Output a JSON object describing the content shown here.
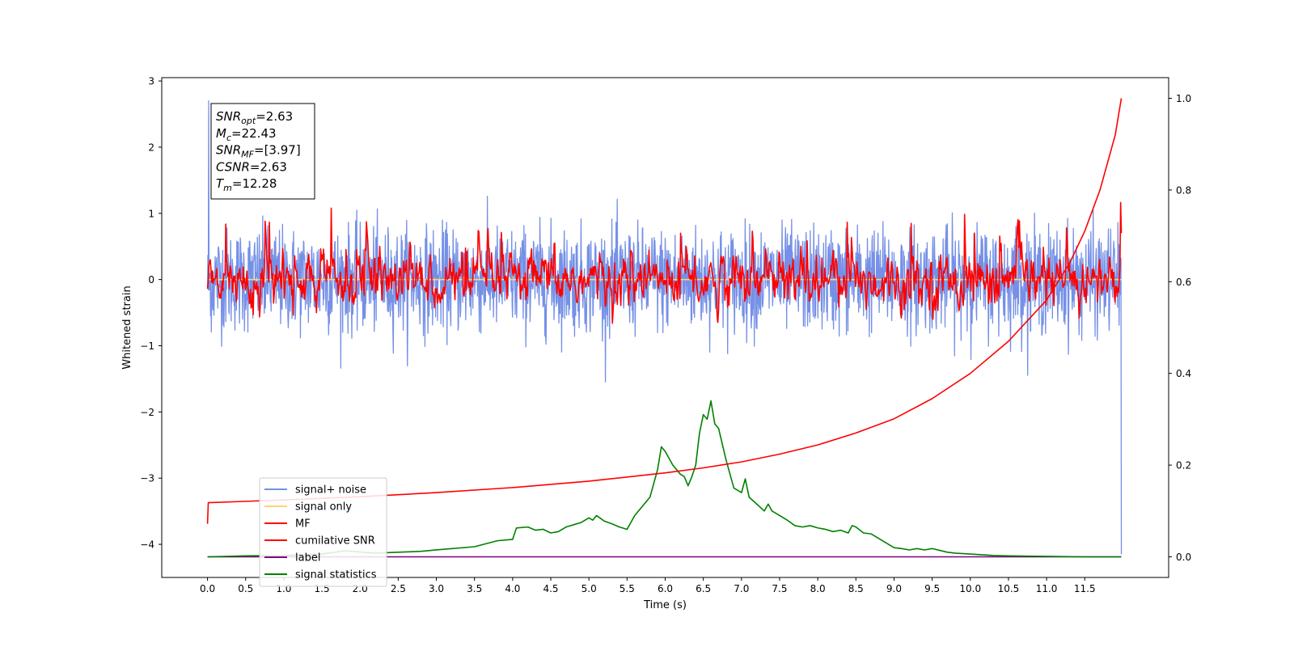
{
  "chart_data": {
    "type": "line",
    "xlabel": "Time (s)",
    "ylabel": "Whitened strain",
    "xlim": [
      -0.6,
      12.6
    ],
    "ylim_left": [
      -4.5,
      3.05
    ],
    "ylim_right": [
      -0.045,
      1.045
    ],
    "x_ticks": [
      0.0,
      0.5,
      1.0,
      1.5,
      2.0,
      2.5,
      3.0,
      3.5,
      4.0,
      4.5,
      5.0,
      5.5,
      6.0,
      6.5,
      7.0,
      7.5,
      8.0,
      8.5,
      9.0,
      9.5,
      10.0,
      10.5,
      11.0,
      11.5
    ],
    "x_tick_labels": [
      "0.0",
      "0.5",
      "1.0",
      "1.5",
      "2.0",
      "2.5",
      "3.0",
      "3.5",
      "4.0",
      "4.5",
      "5.0",
      "5.5",
      "6.0",
      "6.5",
      "7.0",
      "7.5",
      "8.0",
      "8.5",
      "9.0",
      "9.5",
      "10.0",
      "10.5",
      "11.0",
      "11.5"
    ],
    "y_ticks_left": [
      3,
      2,
      1,
      0,
      -1,
      -2,
      -3,
      -4
    ],
    "y_tick_labels_left": [
      "3",
      "2",
      "1",
      "0",
      "−1",
      "−2",
      "−3",
      "−4"
    ],
    "y_ticks_right": [
      1.0,
      0.8,
      0.6,
      0.4,
      0.2,
      0.0
    ],
    "y_tick_labels_right": [
      "1.0",
      "0.8",
      "0.6",
      "0.4",
      "0.2",
      "0.0"
    ],
    "annotation": {
      "lines": [
        {
          "symbol": "SNR",
          "sub": "opt",
          "value": "=2.63"
        },
        {
          "symbol": "M",
          "sub": "c",
          "value": "=22.43"
        },
        {
          "symbol": "SNR",
          "sub": "MF",
          "value": "=[3.97]"
        },
        {
          "symbol": "CSNR",
          "sub": "",
          "value": "=2.63"
        },
        {
          "symbol": "T",
          "sub": "m",
          "value": "=12.28"
        }
      ]
    },
    "legend_position": "lower-left",
    "series": [
      {
        "name": "signal+ noise",
        "axis": "left",
        "color": "#7590e6",
        "kind": "noise",
        "x_range": [
          0,
          11.98
        ],
        "amplitude": 0.62,
        "y_end": -4.15
      },
      {
        "name": "signal only",
        "axis": "left",
        "color": "#ffd27a",
        "kind": "flat",
        "x_range": [
          0,
          11.98
        ],
        "y": 0.0
      },
      {
        "name": "MF",
        "axis": "left",
        "color": "#ff0000",
        "kind": "mf",
        "x_range": [
          0,
          11.98
        ],
        "amplitude": 0.22
      },
      {
        "name": "cumilative SNR",
        "axis": "right",
        "color": "#ff0000",
        "x": [
          0.0,
          0.01,
          0.5,
          1.0,
          2.0,
          3.0,
          4.0,
          5.0,
          6.0,
          6.5,
          7.0,
          7.5,
          8.0,
          8.5,
          9.0,
          9.5,
          10.0,
          10.5,
          11.0,
          11.3,
          11.5,
          11.7,
          11.9,
          11.98
        ],
        "y": [
          0.072,
          0.118,
          0.121,
          0.124,
          0.131,
          0.14,
          0.151,
          0.165,
          0.183,
          0.194,
          0.207,
          0.224,
          0.244,
          0.27,
          0.301,
          0.345,
          0.4,
          0.47,
          0.56,
          0.64,
          0.71,
          0.8,
          0.92,
          1.0
        ]
      },
      {
        "name": "label",
        "axis": "right",
        "color": "#800080",
        "x": [
          0.0,
          11.98
        ],
        "y": [
          0.0,
          0.0
        ]
      },
      {
        "name": "signal statistics",
        "axis": "right",
        "color": "#008000",
        "x": [
          0.0,
          0.5,
          1.0,
          1.5,
          1.8,
          2.2,
          2.5,
          2.8,
          3.0,
          3.5,
          3.8,
          4.0,
          4.05,
          4.2,
          4.3,
          4.4,
          4.5,
          4.6,
          4.7,
          4.8,
          4.9,
          5.0,
          5.05,
          5.1,
          5.2,
          5.3,
          5.4,
          5.5,
          5.6,
          5.7,
          5.8,
          5.9,
          5.95,
          6.0,
          6.1,
          6.2,
          6.25,
          6.3,
          6.35,
          6.4,
          6.45,
          6.5,
          6.55,
          6.6,
          6.65,
          6.7,
          6.8,
          6.9,
          7.0,
          7.05,
          7.1,
          7.2,
          7.3,
          7.35,
          7.4,
          7.5,
          7.6,
          7.7,
          7.8,
          7.9,
          8.0,
          8.1,
          8.2,
          8.3,
          8.4,
          8.45,
          8.5,
          8.6,
          8.7,
          8.8,
          9.0,
          9.1,
          9.2,
          9.3,
          9.4,
          9.5,
          9.6,
          9.7,
          9.8,
          10.0,
          10.3,
          10.5,
          11.0,
          11.5,
          11.98
        ],
        "y": [
          0.0,
          0.002,
          0.003,
          0.006,
          0.013,
          0.008,
          0.01,
          0.012,
          0.015,
          0.022,
          0.035,
          0.038,
          0.063,
          0.065,
          0.058,
          0.06,
          0.052,
          0.055,
          0.065,
          0.07,
          0.075,
          0.085,
          0.08,
          0.09,
          0.078,
          0.072,
          0.065,
          0.06,
          0.09,
          0.11,
          0.13,
          0.19,
          0.24,
          0.23,
          0.2,
          0.18,
          0.175,
          0.155,
          0.175,
          0.2,
          0.27,
          0.31,
          0.3,
          0.34,
          0.29,
          0.28,
          0.21,
          0.15,
          0.14,
          0.17,
          0.13,
          0.115,
          0.1,
          0.115,
          0.1,
          0.09,
          0.08,
          0.068,
          0.065,
          0.068,
          0.063,
          0.06,
          0.055,
          0.058,
          0.052,
          0.068,
          0.065,
          0.052,
          0.05,
          0.04,
          0.02,
          0.018,
          0.015,
          0.018,
          0.015,
          0.018,
          0.014,
          0.01,
          0.008,
          0.006,
          0.003,
          0.002,
          0.001,
          0.0,
          0.0
        ]
      }
    ]
  }
}
